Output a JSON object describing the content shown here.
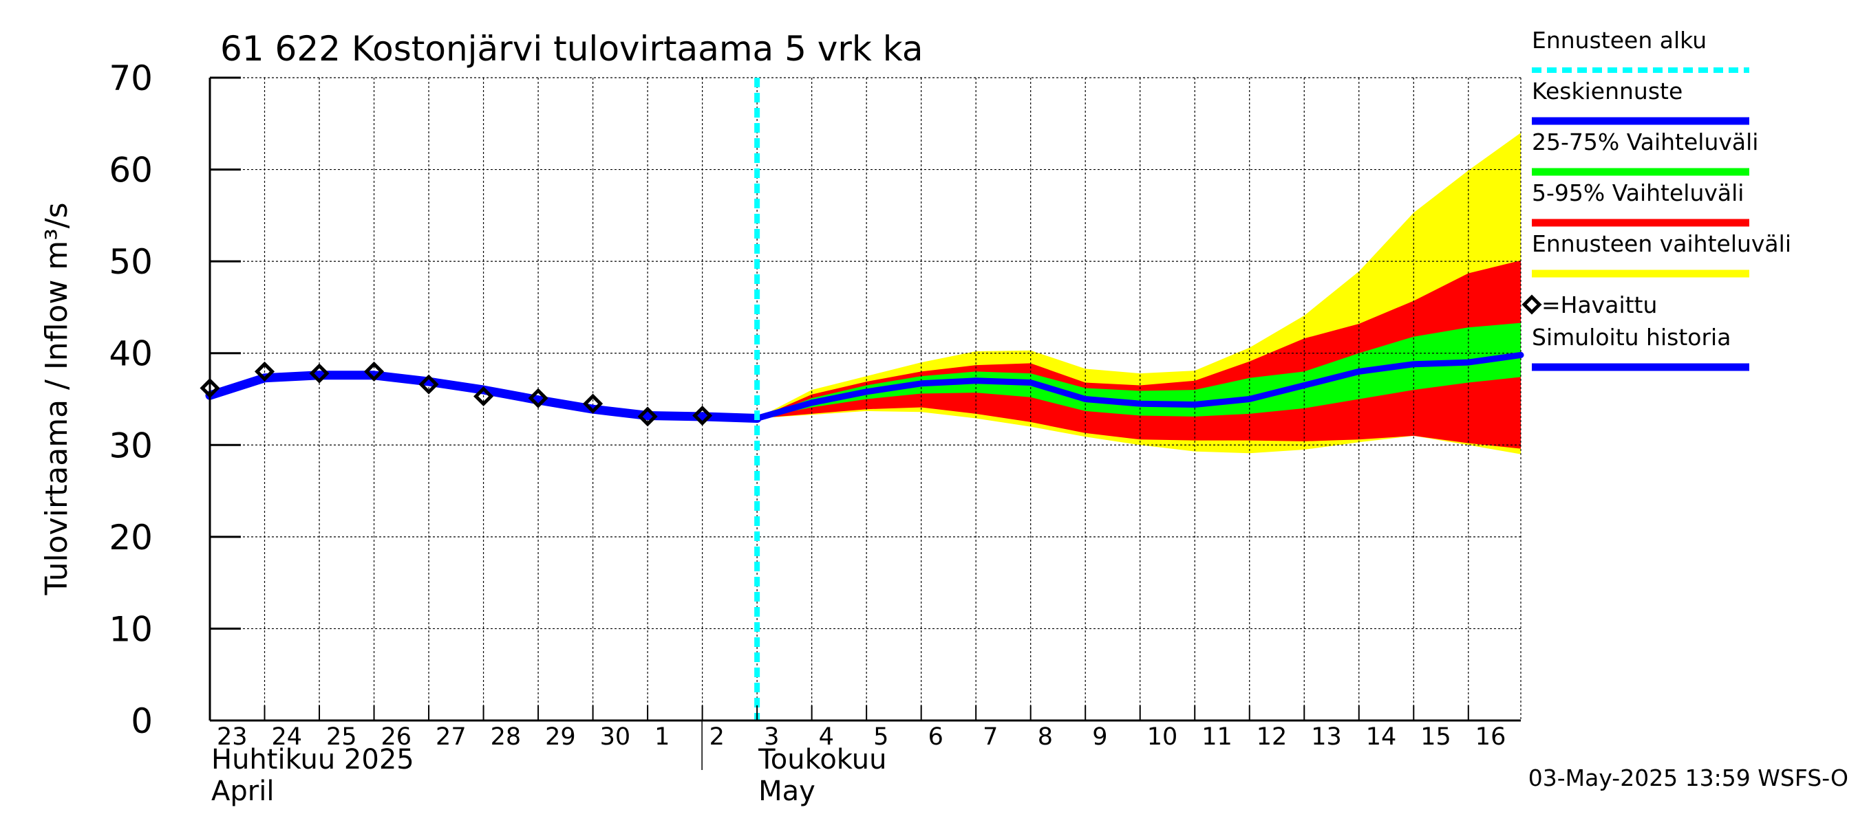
{
  "chart_data": {
    "type": "area",
    "title": "61 622 Kostonjärvi tulovirtaama 5 vrk ka",
    "ylabel": "Tulovirtaama / Inflow    m³/s",
    "ylim": [
      0,
      70
    ],
    "yticks": [
      0,
      10,
      20,
      30,
      40,
      50,
      60,
      70
    ],
    "xlim": [
      "2025-04-23",
      "2025-05-16T23:00"
    ],
    "x_tick_labels": [
      "23",
      "24",
      "25",
      "26",
      "27",
      "28",
      "29",
      "30",
      "1",
      "2",
      "3",
      "4",
      "5",
      "6",
      "7",
      "8",
      "9",
      "10",
      "11",
      "12",
      "13",
      "14",
      "15",
      "16"
    ],
    "x_tick_dates": [
      "2025-04-23",
      "2025-04-24",
      "2025-04-25",
      "2025-04-26",
      "2025-04-27",
      "2025-04-28",
      "2025-04-29",
      "2025-04-30",
      "2025-05-01",
      "2025-05-02",
      "2025-05-03",
      "2025-05-04",
      "2025-05-05",
      "2025-05-06",
      "2025-05-07",
      "2025-05-08",
      "2025-05-09",
      "2025-05-10",
      "2025-05-11",
      "2025-05-12",
      "2025-05-13",
      "2025-05-14",
      "2025-05-15",
      "2025-05-16"
    ],
    "month_labels": [
      {
        "line1": "Huhtikuu  2025",
        "line2": "April",
        "start": "2025-04-23"
      },
      {
        "line1": "Toukokuu",
        "line2": "May",
        "start": "2025-05-03"
      }
    ],
    "grid": true,
    "forecast_start": "2025-05-03T00:00",
    "observed": {
      "name": "=Havaittu",
      "x": [
        "2025-04-23",
        "2025-04-24",
        "2025-04-25",
        "2025-04-26",
        "2025-04-27",
        "2025-04-28",
        "2025-04-29",
        "2025-04-30",
        "2025-05-01",
        "2025-05-02"
      ],
      "y": [
        36.2,
        38.0,
        37.8,
        38.0,
        36.6,
        35.3,
        35.1,
        34.5,
        33.1,
        33.2
      ]
    },
    "simulated": {
      "name": "Simuloitu historia",
      "x": [
        "2025-04-23",
        "2025-04-24",
        "2025-04-25",
        "2025-04-26",
        "2025-04-27",
        "2025-04-28",
        "2025-04-29",
        "2025-04-30",
        "2025-05-01",
        "2025-05-02",
        "2025-05-03"
      ],
      "y": [
        35.4,
        37.3,
        37.6,
        37.6,
        36.9,
        36.0,
        34.9,
        33.9,
        33.2,
        33.1,
        32.9
      ]
    },
    "forecast_x": [
      "2025-05-03",
      "2025-05-04",
      "2025-05-05",
      "2025-05-06",
      "2025-05-07",
      "2025-05-08",
      "2025-05-09",
      "2025-05-10",
      "2025-05-11",
      "2025-05-12",
      "2025-05-13",
      "2025-05-14",
      "2025-05-15",
      "2025-05-16",
      "2025-05-16T23:00"
    ],
    "median": {
      "name": "Keskiennuste",
      "y": [
        32.9,
        34.6,
        35.8,
        36.7,
        37.0,
        36.8,
        35.0,
        34.5,
        34.4,
        35.0,
        36.5,
        38.0,
        38.8,
        39.0,
        39.8
      ]
    },
    "band_25_75": {
      "name": "25-75% Vaihteluväli",
      "low": [
        32.9,
        34.1,
        35.0,
        35.6,
        35.7,
        35.2,
        33.7,
        33.2,
        33.1,
        33.4,
        34.0,
        35.0,
        36.0,
        36.8,
        37.4
      ],
      "high": [
        32.9,
        35.1,
        36.5,
        37.5,
        38.0,
        37.8,
        36.2,
        35.9,
        36.0,
        37.3,
        38.0,
        40.0,
        41.8,
        42.8,
        43.3
      ]
    },
    "band_5_95": {
      "name": "5-95% Vaihteluväli",
      "low": [
        32.9,
        33.4,
        33.9,
        34.1,
        33.4,
        32.5,
        31.3,
        30.6,
        30.5,
        30.5,
        30.4,
        30.6,
        31.0,
        30.2,
        29.6
      ],
      "high": [
        32.9,
        35.5,
        36.9,
        38.0,
        38.7,
        38.9,
        36.8,
        36.5,
        37.0,
        39.1,
        41.6,
        43.2,
        45.7,
        48.7,
        50.1
      ]
    },
    "band_full": {
      "name": "Ennusteen vaihteluväli",
      "low": [
        32.9,
        33.3,
        33.7,
        33.6,
        32.9,
        32.0,
        30.9,
        30.0,
        29.3,
        29.1,
        29.5,
        30.3,
        31.0,
        30.0,
        29.0
      ],
      "high": [
        32.9,
        36.0,
        37.5,
        39.0,
        40.2,
        40.3,
        38.3,
        37.8,
        38.1,
        40.6,
        44.1,
        48.9,
        55.3,
        59.9,
        64.0
      ]
    },
    "legend": [
      {
        "label": "Ennusteen alku",
        "color": "#00ffff",
        "style": "dashed"
      },
      {
        "label": "Keskiennuste",
        "color": "#0000ff",
        "style": "line"
      },
      {
        "label": "25-75% Vaihteluväli",
        "color": "#00ff00",
        "style": "line"
      },
      {
        "label": "5-95% Vaihteluväli",
        "color": "#ff0000",
        "style": "line"
      },
      {
        "label": "Ennusteen vaihteluväli",
        "color": "#ffff00",
        "style": "line"
      },
      {
        "label": "=Havaittu",
        "color": "#000000",
        "style": "marker"
      },
      {
        "label": "Simuloitu historia",
        "color": "#0000ff",
        "style": "line"
      }
    ],
    "legend_position": "right",
    "colors": {
      "forecast_start": "#00ffff",
      "median": "#0000ff",
      "simulated": "#0000ff",
      "band_25_75": "#00ff00",
      "band_5_95": "#ff0000",
      "band_full": "#ffff00",
      "observed": "#000000",
      "grid": "#000000"
    }
  },
  "footer": "03-May-2025 13:59 WSFS-O"
}
